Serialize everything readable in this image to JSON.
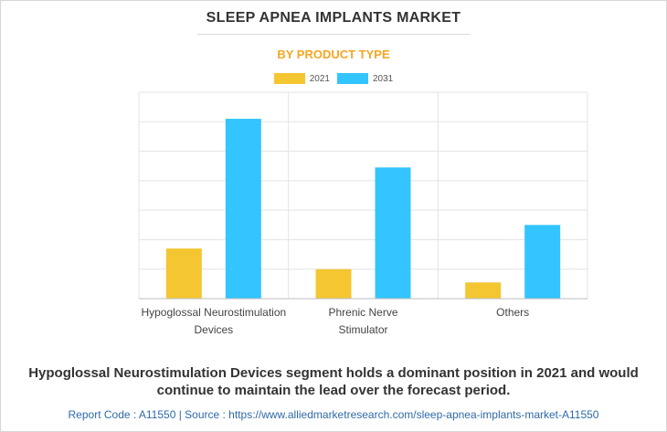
{
  "header": {
    "title": "SLEEP APNEA IMPLANTS MARKET",
    "subtitle": "BY PRODUCT TYPE"
  },
  "colors": {
    "subtitle": "#f5a623",
    "series_2021": "#f4c632",
    "series_2031": "#33c5ff",
    "grid": "#e3e3e3",
    "footer": "#2e6aa8"
  },
  "chart_data": {
    "type": "bar",
    "title": "",
    "xlabel": "",
    "ylabel": "",
    "categories": [
      [
        "Hypoglossal Neurostimulation",
        "Devices"
      ],
      [
        "Phrenic Nerve",
        "Stimulator"
      ],
      [
        "Others"
      ]
    ],
    "series": [
      {
        "name": "2021",
        "values": [
          17,
          10,
          5.5
        ]
      },
      {
        "name": "2031",
        "values": [
          61,
          44.5,
          25
        ]
      }
    ],
    "ylim": [
      0,
      70
    ],
    "grid": true,
    "legend": "top-center"
  },
  "takeaway": "Hypoglossal Neurostimulation Devices segment holds a dominant position in 2021 and would continue to maintain the lead over the forecast period.",
  "footer": "Report Code : A11550  |  Source : https://www.alliedmarketresearch.com/sleep-apnea-implants-market-A11550"
}
